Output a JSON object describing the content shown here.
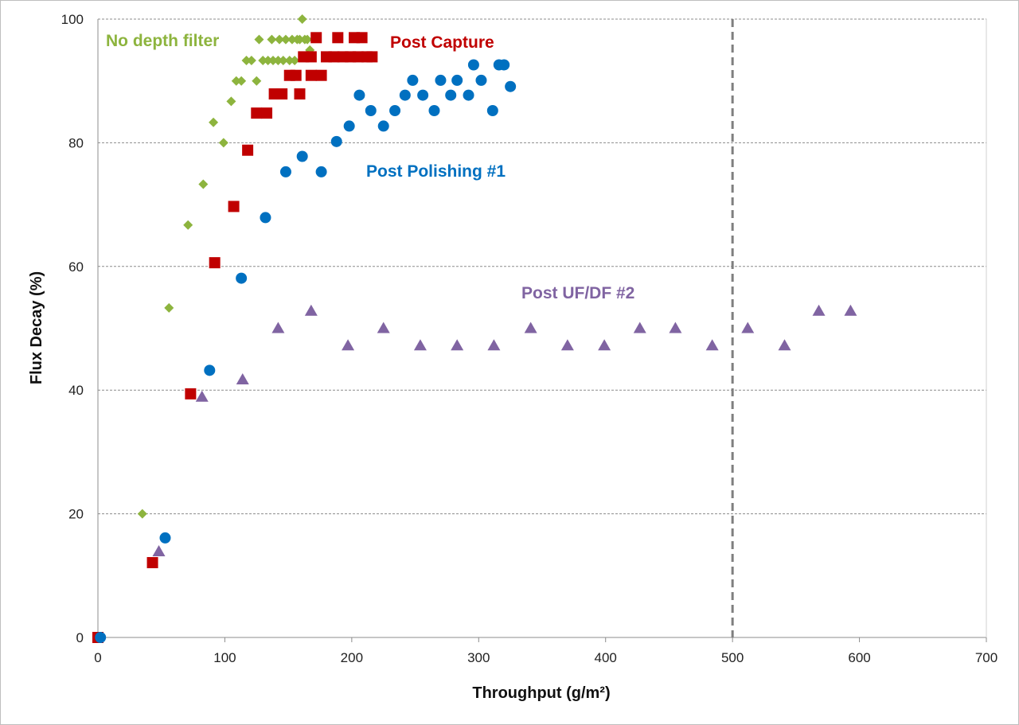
{
  "chart_data": {
    "type": "scatter",
    "title": "",
    "xlabel": "Throughput (g/m²)",
    "ylabel": "Flux Decay (%)",
    "xlim": [
      0,
      700
    ],
    "ylim": [
      0,
      100
    ],
    "x_ticks": [
      "0",
      "100",
      "200",
      "300",
      "400",
      "500",
      "600",
      "700"
    ],
    "y_ticks": [
      "0",
      "20",
      "40",
      "60",
      "80",
      "100"
    ],
    "grid": "horizontal dashed",
    "reference_line_x": 500,
    "series": [
      {
        "name": "No depth filter",
        "marker": "diamond",
        "color": "#8db43e",
        "points": [
          [
            0,
            0
          ],
          [
            35,
            20
          ],
          [
            56,
            53.3
          ],
          [
            71,
            66.7
          ],
          [
            83,
            73.3
          ],
          [
            91,
            83.3
          ],
          [
            99,
            80
          ],
          [
            105,
            86.7
          ],
          [
            109,
            90
          ],
          [
            113,
            90
          ],
          [
            117,
            93.3
          ],
          [
            121,
            93.3
          ],
          [
            125,
            90
          ],
          [
            127,
            96.7
          ],
          [
            130,
            93.3
          ],
          [
            134,
            93.3
          ],
          [
            137,
            96.7
          ],
          [
            138,
            93.3
          ],
          [
            142,
            93.3
          ],
          [
            143,
            96.7
          ],
          [
            146,
            93.3
          ],
          [
            148,
            96.7
          ],
          [
            151,
            93.3
          ],
          [
            153,
            96.7
          ],
          [
            155,
            93.3
          ],
          [
            157,
            96.7
          ],
          [
            159,
            96.7
          ],
          [
            161,
            100
          ],
          [
            163,
            96.7
          ],
          [
            165,
            96.7
          ],
          [
            167,
            95
          ]
        ]
      },
      {
        "name": "Post Capture",
        "marker": "square",
        "color": "#c00000",
        "points": [
          [
            0,
            0
          ],
          [
            43,
            12.1
          ],
          [
            73,
            39.4
          ],
          [
            92,
            60.6
          ],
          [
            107,
            69.7
          ],
          [
            118,
            78.8
          ],
          [
            125,
            84.8
          ],
          [
            133,
            84.8
          ],
          [
            139,
            87.9
          ],
          [
            145,
            87.9
          ],
          [
            151,
            90.9
          ],
          [
            156,
            90.9
          ],
          [
            159,
            87.9
          ],
          [
            162,
            93.9
          ],
          [
            168,
            93.9
          ],
          [
            168,
            90.9
          ],
          [
            172,
            97
          ],
          [
            176,
            90.9
          ],
          [
            180,
            93.9
          ],
          [
            186,
            93.9
          ],
          [
            189,
            97
          ],
          [
            193,
            93.9
          ],
          [
            199,
            93.9
          ],
          [
            202,
            97
          ],
          [
            205,
            93.9
          ],
          [
            208,
            97
          ],
          [
            212,
            93.9
          ],
          [
            216,
            93.9
          ]
        ]
      },
      {
        "name": "Post Polishing #1",
        "marker": "circle",
        "color": "#0070c0",
        "points": [
          [
            2,
            0
          ],
          [
            53,
            16.1
          ],
          [
            88,
            43.2
          ],
          [
            113,
            58.1
          ],
          [
            132,
            67.9
          ],
          [
            148,
            75.3
          ],
          [
            161,
            77.8
          ],
          [
            176,
            75.3
          ],
          [
            188,
            80.2
          ],
          [
            198,
            82.7
          ],
          [
            206,
            87.7
          ],
          [
            215,
            85.2
          ],
          [
            225,
            82.7
          ],
          [
            234,
            85.2
          ],
          [
            242,
            87.7
          ],
          [
            248,
            90.1
          ],
          [
            256,
            87.7
          ],
          [
            265,
            85.2
          ],
          [
            270,
            90.1
          ],
          [
            278,
            87.7
          ],
          [
            283,
            90.1
          ],
          [
            292,
            87.7
          ],
          [
            296,
            92.6
          ],
          [
            302,
            90.1
          ],
          [
            311,
            85.2
          ],
          [
            316,
            92.6
          ],
          [
            320,
            92.6
          ],
          [
            325,
            89.1
          ]
        ]
      },
      {
        "name": "Post UF/DF #2",
        "marker": "triangle",
        "color": "#8064a2",
        "points": [
          [
            48,
            13.9
          ],
          [
            82,
            38.9
          ],
          [
            114,
            41.7
          ],
          [
            142,
            50
          ],
          [
            168,
            52.8
          ],
          [
            197,
            47.2
          ],
          [
            225,
            50
          ],
          [
            254,
            47.2
          ],
          [
            283,
            47.2
          ],
          [
            312,
            47.2
          ],
          [
            341,
            50
          ],
          [
            370,
            47.2
          ],
          [
            399,
            47.2
          ],
          [
            427,
            50
          ],
          [
            455,
            50
          ],
          [
            484,
            47.2
          ],
          [
            512,
            50
          ],
          [
            541,
            47.2
          ],
          [
            568,
            52.8
          ],
          [
            593,
            52.8
          ]
        ]
      }
    ]
  }
}
